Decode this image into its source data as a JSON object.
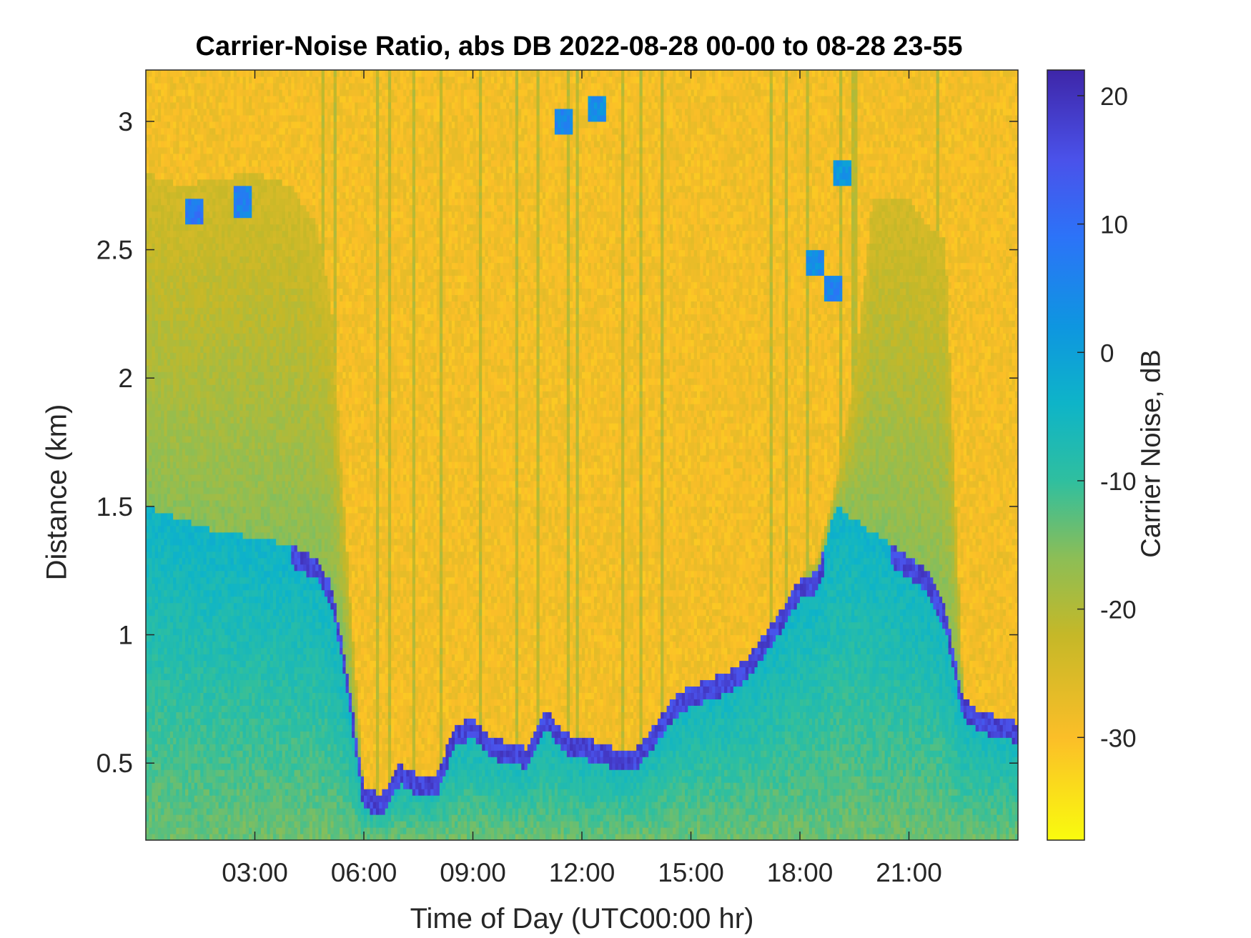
{
  "chart_data": {
    "type": "heatmap",
    "title": "Carrier-Noise Ratio, abs DB 2022-08-28 00-00 to 08-28 23-55",
    "xlabel": "Time of Day (UTC00:00 hr)",
    "ylabel": "Distance (km)",
    "colorbar_label": "Carrier Noise, dB",
    "x_unit": "hours",
    "xlim": [
      0,
      24
    ],
    "ylim": [
      0.2,
      3.2
    ],
    "clim": [
      -38,
      22
    ],
    "x_ticks": [
      {
        "value": 3,
        "label": "03:00"
      },
      {
        "value": 6,
        "label": "06:00"
      },
      {
        "value": 9,
        "label": "09:00"
      },
      {
        "value": 12,
        "label": "12:00"
      },
      {
        "value": 15,
        "label": "15:00"
      },
      {
        "value": 18,
        "label": "18:00"
      },
      {
        "value": 21,
        "label": "21:00"
      }
    ],
    "y_ticks": [
      {
        "value": 0.5,
        "label": "0.5"
      },
      {
        "value": 1,
        "label": "1"
      },
      {
        "value": 1.5,
        "label": "1.5"
      },
      {
        "value": 2,
        "label": "2"
      },
      {
        "value": 2.5,
        "label": "2.5"
      },
      {
        "value": 3,
        "label": "3"
      }
    ],
    "colorbar_ticks": [
      {
        "value": 20,
        "label": "20"
      },
      {
        "value": 10,
        "label": "10"
      },
      {
        "value": 0,
        "label": "0"
      },
      {
        "value": -10,
        "label": "-10"
      },
      {
        "value": -20,
        "label": "-20"
      },
      {
        "value": -30,
        "label": "-30"
      }
    ],
    "colormap": "parula",
    "colormap_stops": [
      {
        "value": -38,
        "color": "#f9fb0e"
      },
      {
        "value": -30,
        "color": "#fbbe28"
      },
      {
        "value": -22,
        "color": "#c5b828"
      },
      {
        "value": -16,
        "color": "#8cbe56"
      },
      {
        "value": -10,
        "color": "#2fbf9f"
      },
      {
        "value": -4,
        "color": "#0eb4c8"
      },
      {
        "value": 2,
        "color": "#0e96e0"
      },
      {
        "value": 9,
        "color": "#2c73f8"
      },
      {
        "value": 15,
        "color": "#4a52ea"
      },
      {
        "value": 22,
        "color": "#3e26a8"
      }
    ],
    "background_noise_db": -29,
    "boundary_layer": {
      "description": "signal (high CNR) region below the profile; noise above",
      "time_hours": [
        0,
        1,
        2,
        3,
        4,
        4.7,
        5.1,
        5.5,
        6,
        6.5,
        7,
        7.5,
        8,
        8.5,
        9,
        9.5,
        10,
        10.5,
        11,
        11.5,
        12,
        12.5,
        13,
        13.5,
        14,
        14.5,
        15,
        15.5,
        16,
        16.5,
        17,
        17.5,
        18,
        18.5,
        19,
        19.5,
        20,
        20.5,
        21,
        21.5,
        22,
        22.5,
        23,
        23.5,
        24
      ],
      "top_km": [
        2.8,
        2.75,
        2.78,
        2.8,
        2.75,
        2.6,
        2.3,
        1.4,
        0.4,
        0.38,
        0.5,
        0.45,
        0.45,
        0.65,
        0.68,
        0.6,
        0.58,
        0.56,
        0.72,
        0.62,
        0.6,
        0.58,
        0.55,
        0.56,
        0.65,
        0.75,
        0.8,
        0.83,
        0.85,
        0.9,
        1.0,
        1.1,
        1.22,
        1.3,
        1.6,
        2.0,
        2.7,
        2.7,
        2.7,
        2.6,
        2.55,
        0.75,
        0.7,
        0.68,
        0.66
      ],
      "lower_layer_top_km": [
        1.5,
        1.45,
        1.4,
        1.38,
        1.35,
        1.3,
        1.2,
        0.9,
        0.4,
        0.38,
        0.5,
        0.45,
        0.45,
        0.65,
        0.68,
        0.6,
        0.58,
        0.56,
        0.72,
        0.62,
        0.6,
        0.58,
        0.55,
        0.56,
        0.65,
        0.75,
        0.8,
        0.83,
        0.85,
        0.9,
        1.0,
        1.1,
        1.22,
        1.25,
        1.5,
        1.45,
        1.4,
        1.35,
        1.3,
        1.25,
        1.1,
        0.75,
        0.7,
        0.68,
        0.66
      ],
      "peak_db_at_top": 20
    },
    "vertical_streaks_hours": [
      4.9,
      5.2,
      6.4,
      6.7,
      7.4,
      8.1,
      9.2,
      10.2,
      10.8,
      11.6,
      11.9,
      13.1,
      13.6,
      14.2,
      17.2,
      17.6,
      18.2,
      19.1,
      19.5,
      21.8
    ],
    "aerosol_patches": [
      {
        "time_hours": 1.3,
        "distance_km": 2.65,
        "db": 8
      },
      {
        "time_hours": 2.7,
        "distance_km": 2.68,
        "db": 6
      },
      {
        "time_hours": 11.5,
        "distance_km": 3.0,
        "db": 5
      },
      {
        "time_hours": 12.4,
        "distance_km": 3.05,
        "db": 3
      },
      {
        "time_hours": 18.4,
        "distance_km": 2.45,
        "db": 4
      },
      {
        "time_hours": 18.9,
        "distance_km": 2.35,
        "db": 6
      },
      {
        "time_hours": 19.2,
        "distance_km": 2.8,
        "db": 2
      }
    ]
  }
}
